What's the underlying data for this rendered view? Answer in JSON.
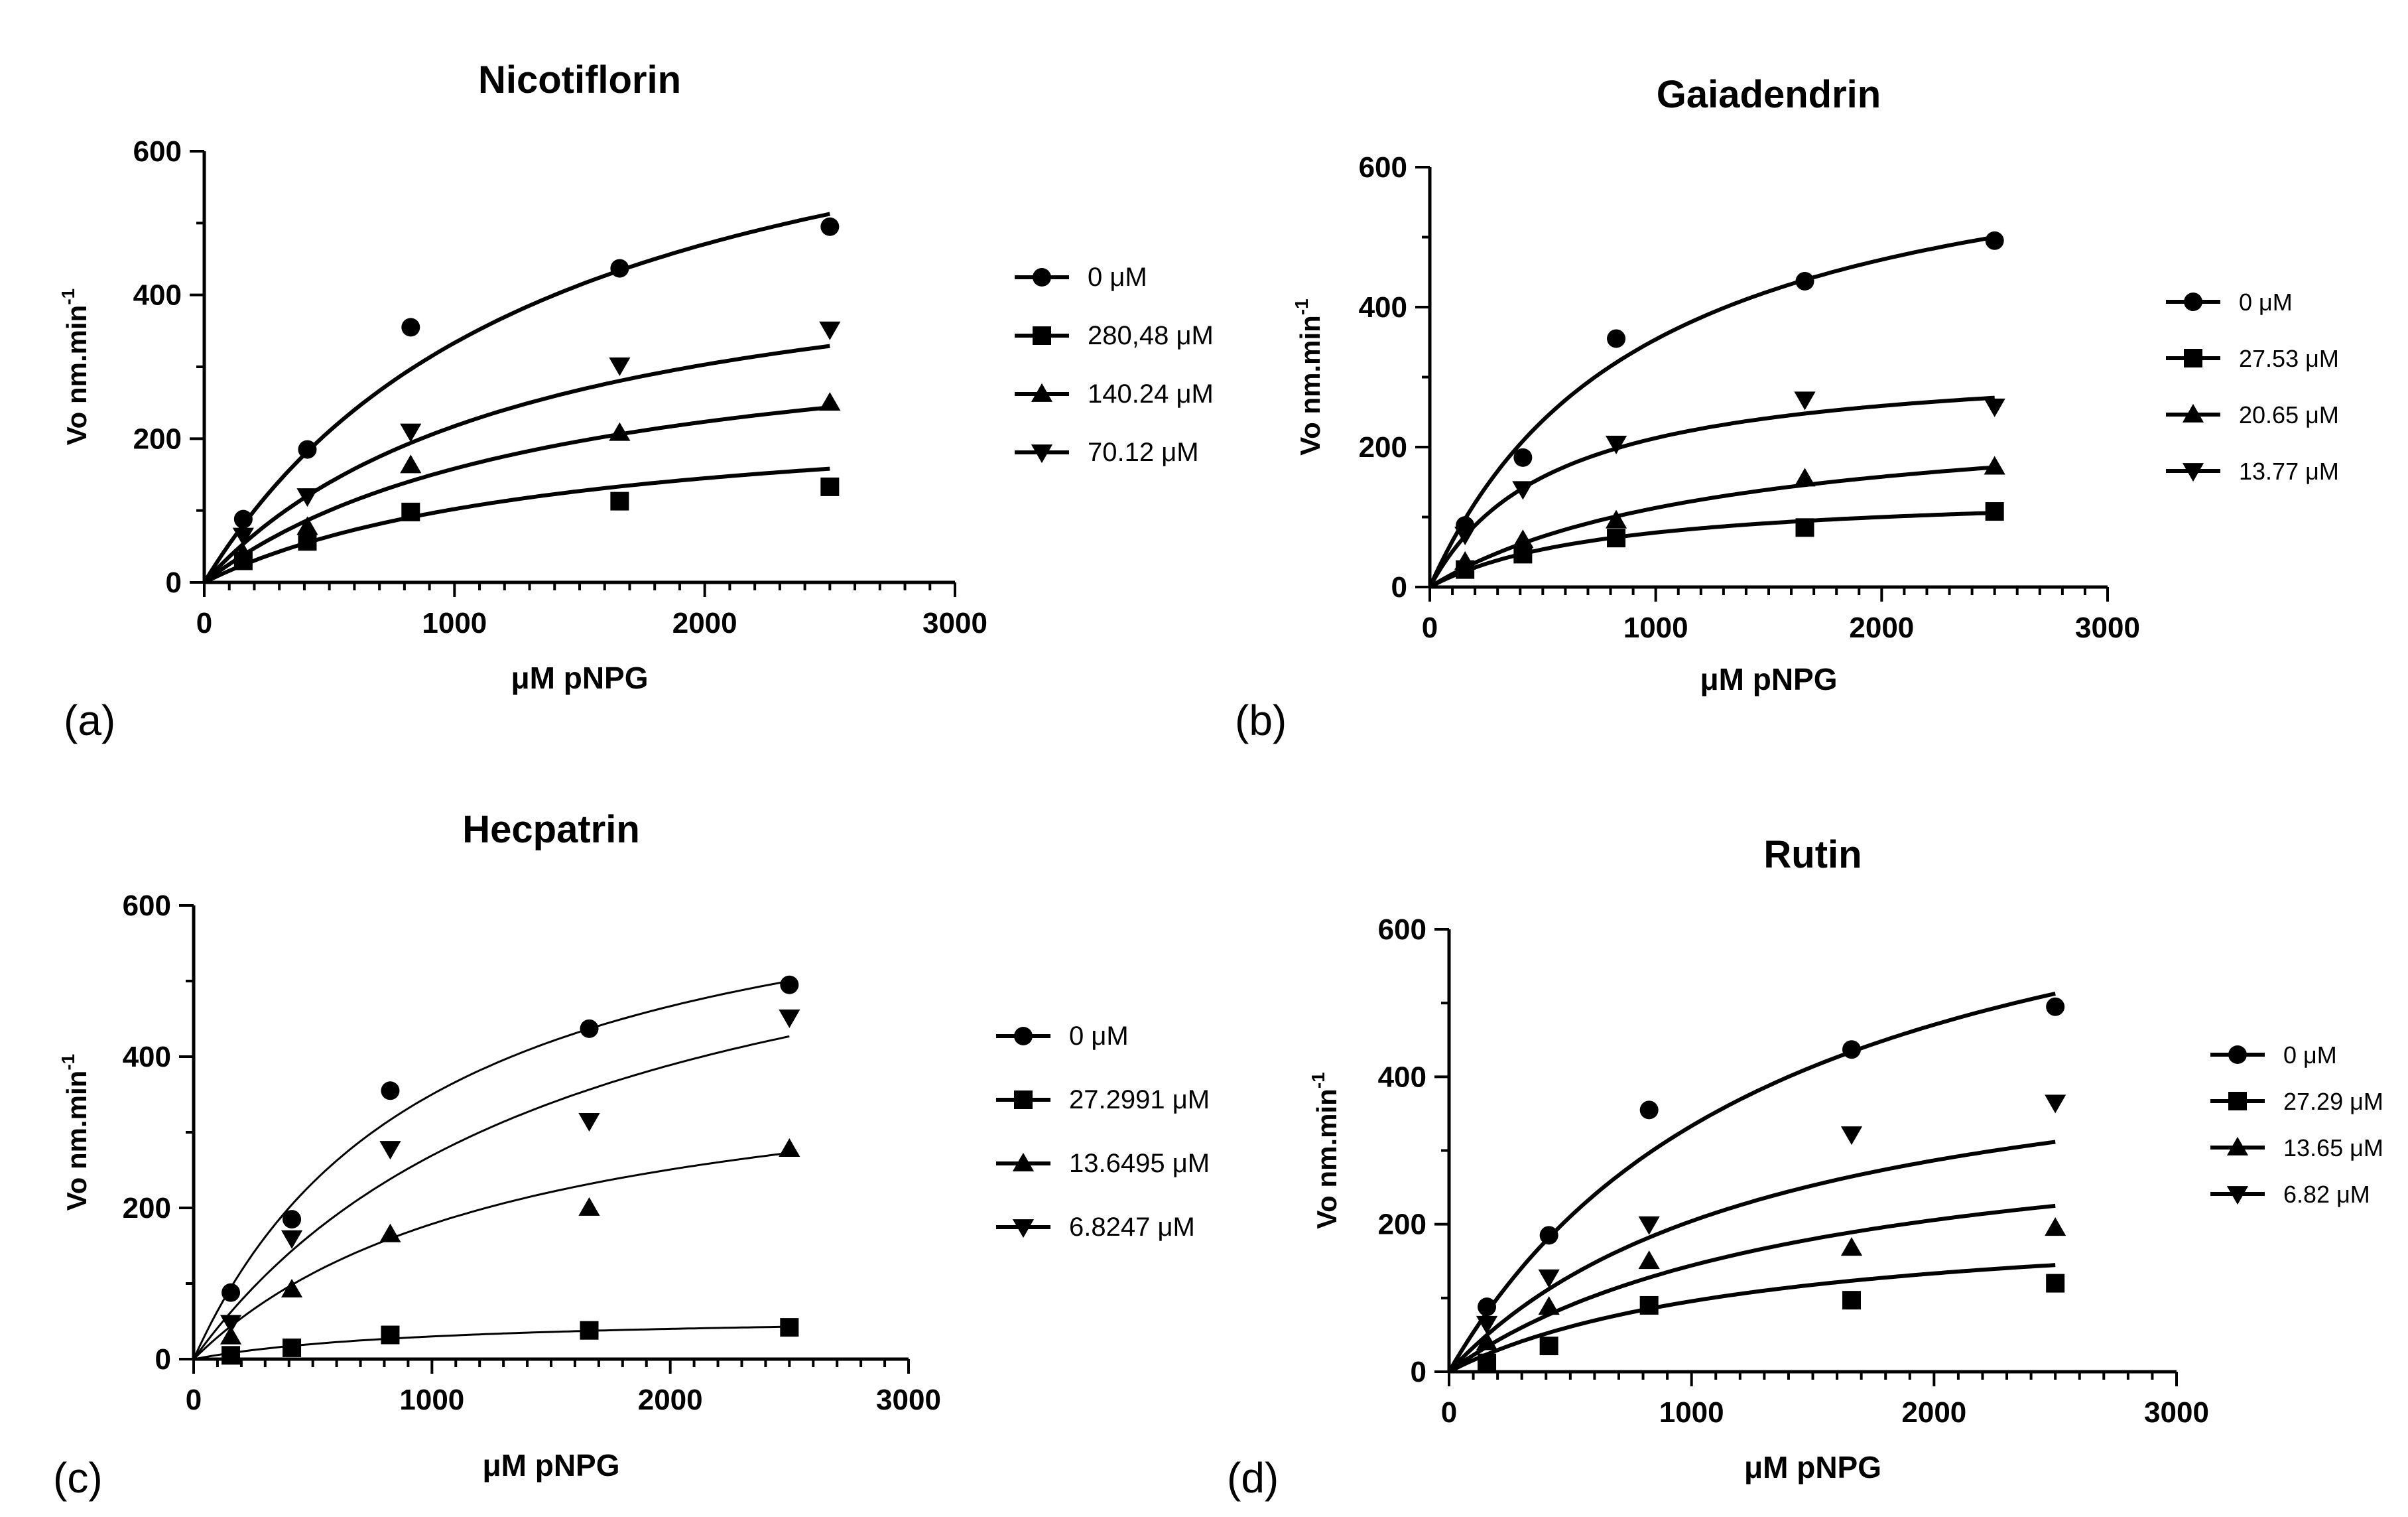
{
  "chart_data": [
    {
      "type": "scatter",
      "panel_label": "(a)",
      "title": "Nicotiflorin",
      "xlabel": "μM pNPG",
      "ylabel": "Vo nm.min",
      "ylabel_sup": "-1",
      "xlim": [
        0,
        3000
      ],
      "ylim": [
        0,
        600
      ],
      "x_ticks": [
        0,
        1000,
        2000,
        3000
      ],
      "y_ticks": [
        0,
        200,
        400,
        600
      ],
      "x_tick_labels": [
        "0",
        "1000",
        "2000",
        "3000"
      ],
      "y_tick_labels": [
        "0",
        "200",
        "400",
        "600"
      ],
      "x": [
        156,
        412,
        825,
        1660,
        2500
      ],
      "series": [
        {
          "name": "0 μM",
          "marker": "circle",
          "values": [
            88,
            185,
            355,
            437,
            495
          ],
          "fit": {
            "vmax": 800,
            "km": 1400
          }
        },
        {
          "name": "280,48 μM",
          "marker": "square",
          "values": [
            30,
            57,
            98,
            113,
            133
          ],
          "fit": {
            "vmax": 250,
            "km": 1450
          }
        },
        {
          "name": "140.24 μM",
          "marker": "triangle-up",
          "values": [
            40,
            77,
            163,
            208,
            250
          ],
          "fit": {
            "vmax": 380,
            "km": 1400
          }
        },
        {
          "name": "70.12 μM",
          "marker": "triangle-down",
          "values": [
            65,
            120,
            210,
            302,
            352
          ],
          "fit": {
            "vmax": 500,
            "km": 1300
          }
        }
      ]
    },
    {
      "type": "scatter",
      "panel_label": "(b)",
      "title": "Gaiadendrin",
      "xlabel": "μM pNPG",
      "ylabel": "Vo nm.min",
      "ylabel_sup": "-1",
      "xlim": [
        0,
        3000
      ],
      "ylim": [
        0,
        600
      ],
      "x_ticks": [
        0,
        1000,
        2000,
        3000
      ],
      "y_ticks": [
        0,
        200,
        400,
        600
      ],
      "x_tick_labels": [
        "0",
        "1000",
        "2000",
        "3000"
      ],
      "y_tick_labels": [
        "0",
        "200",
        "400",
        "600"
      ],
      "x": [
        156,
        412,
        825,
        1660,
        2500
      ],
      "series": [
        {
          "name": "0 μM",
          "marker": "circle",
          "values": [
            88,
            185,
            355,
            437,
            495
          ],
          "fit": {
            "vmax": 690,
            "km": 950
          }
        },
        {
          "name": "27.53 μM",
          "marker": "square",
          "values": [
            25,
            47,
            70,
            85,
            108
          ],
          "fit": {
            "vmax": 140,
            "km": 800
          }
        },
        {
          "name": "20.65 μM",
          "marker": "triangle-up",
          "values": [
            36,
            67,
            95,
            155,
            172
          ],
          "fit": {
            "vmax": 260,
            "km": 1300
          }
        },
        {
          "name": "13.77 μM",
          "marker": "triangle-down",
          "values": [
            75,
            140,
            205,
            268,
            258
          ],
          "fit": {
            "vmax": 330,
            "km": 550
          }
        }
      ]
    },
    {
      "type": "scatter",
      "panel_label": "(c)",
      "title": "Hecpatrin",
      "xlabel": "μM pNPG",
      "ylabel": "Vo nm.min",
      "ylabel_sup": "-1",
      "xlim": [
        0,
        3000
      ],
      "ylim": [
        0,
        600
      ],
      "x_ticks": [
        0,
        1000,
        2000,
        3000
      ],
      "y_ticks": [
        0,
        200,
        400,
        600
      ],
      "x_tick_labels": [
        "0",
        "1000",
        "2000",
        "3000"
      ],
      "y_tick_labels": [
        "0",
        "200",
        "400",
        "600"
      ],
      "x": [
        156,
        412,
        825,
        1660,
        2500
      ],
      "series": [
        {
          "name": "0 μM",
          "marker": "circle",
          "values": [
            88,
            185,
            355,
            437,
            495
          ],
          "fit": {
            "vmax": 700,
            "km": 1000
          }
        },
        {
          "name": "27.2991 μM",
          "marker": "square",
          "values": [
            5,
            15,
            32,
            38,
            42
          ],
          "fit": {
            "vmax": 60,
            "km": 1000
          }
        },
        {
          "name": "13.6495 μM",
          "marker": "triangle-up",
          "values": [
            30,
            92,
            165,
            200,
            278
          ],
          "fit": {
            "vmax": 420,
            "km": 1350
          }
        },
        {
          "name": "6.8247 μM",
          "marker": "triangle-down",
          "values": [
            48,
            160,
            278,
            315,
            452
          ],
          "fit": {
            "vmax": 700,
            "km": 1600
          }
        }
      ]
    },
    {
      "type": "scatter",
      "panel_label": "(d)",
      "title": "Rutin",
      "xlabel": "μM pNPG",
      "ylabel": "Vo nm.min",
      "ylabel_sup": "-1",
      "xlim": [
        0,
        3000
      ],
      "ylim": [
        0,
        600
      ],
      "x_ticks": [
        0,
        1000,
        2000,
        3000
      ],
      "y_ticks": [
        0,
        200,
        400,
        600
      ],
      "x_tick_labels": [
        "0",
        "1000",
        "2000",
        "3000"
      ],
      "y_tick_labels": [
        "0",
        "200",
        "400",
        "600"
      ],
      "x": [
        156,
        412,
        825,
        1660,
        2500
      ],
      "series": [
        {
          "name": "0 μM",
          "marker": "circle",
          "values": [
            88,
            185,
            355,
            437,
            495
          ],
          "fit": {
            "vmax": 800,
            "km": 1400
          }
        },
        {
          "name": "27.29 μM",
          "marker": "square",
          "values": [
            12,
            35,
            90,
            97,
            120
          ],
          "fit": {
            "vmax": 220,
            "km": 1300
          }
        },
        {
          "name": "13.65 μM",
          "marker": "triangle-up",
          "values": [
            40,
            88,
            150,
            168,
            195
          ],
          "fit": {
            "vmax": 360,
            "km": 1500
          }
        },
        {
          "name": "6.82 μM",
          "marker": "triangle-down",
          "values": [
            65,
            128,
            200,
            322,
            365
          ],
          "fit": {
            "vmax": 480,
            "km": 1350
          }
        }
      ]
    }
  ]
}
